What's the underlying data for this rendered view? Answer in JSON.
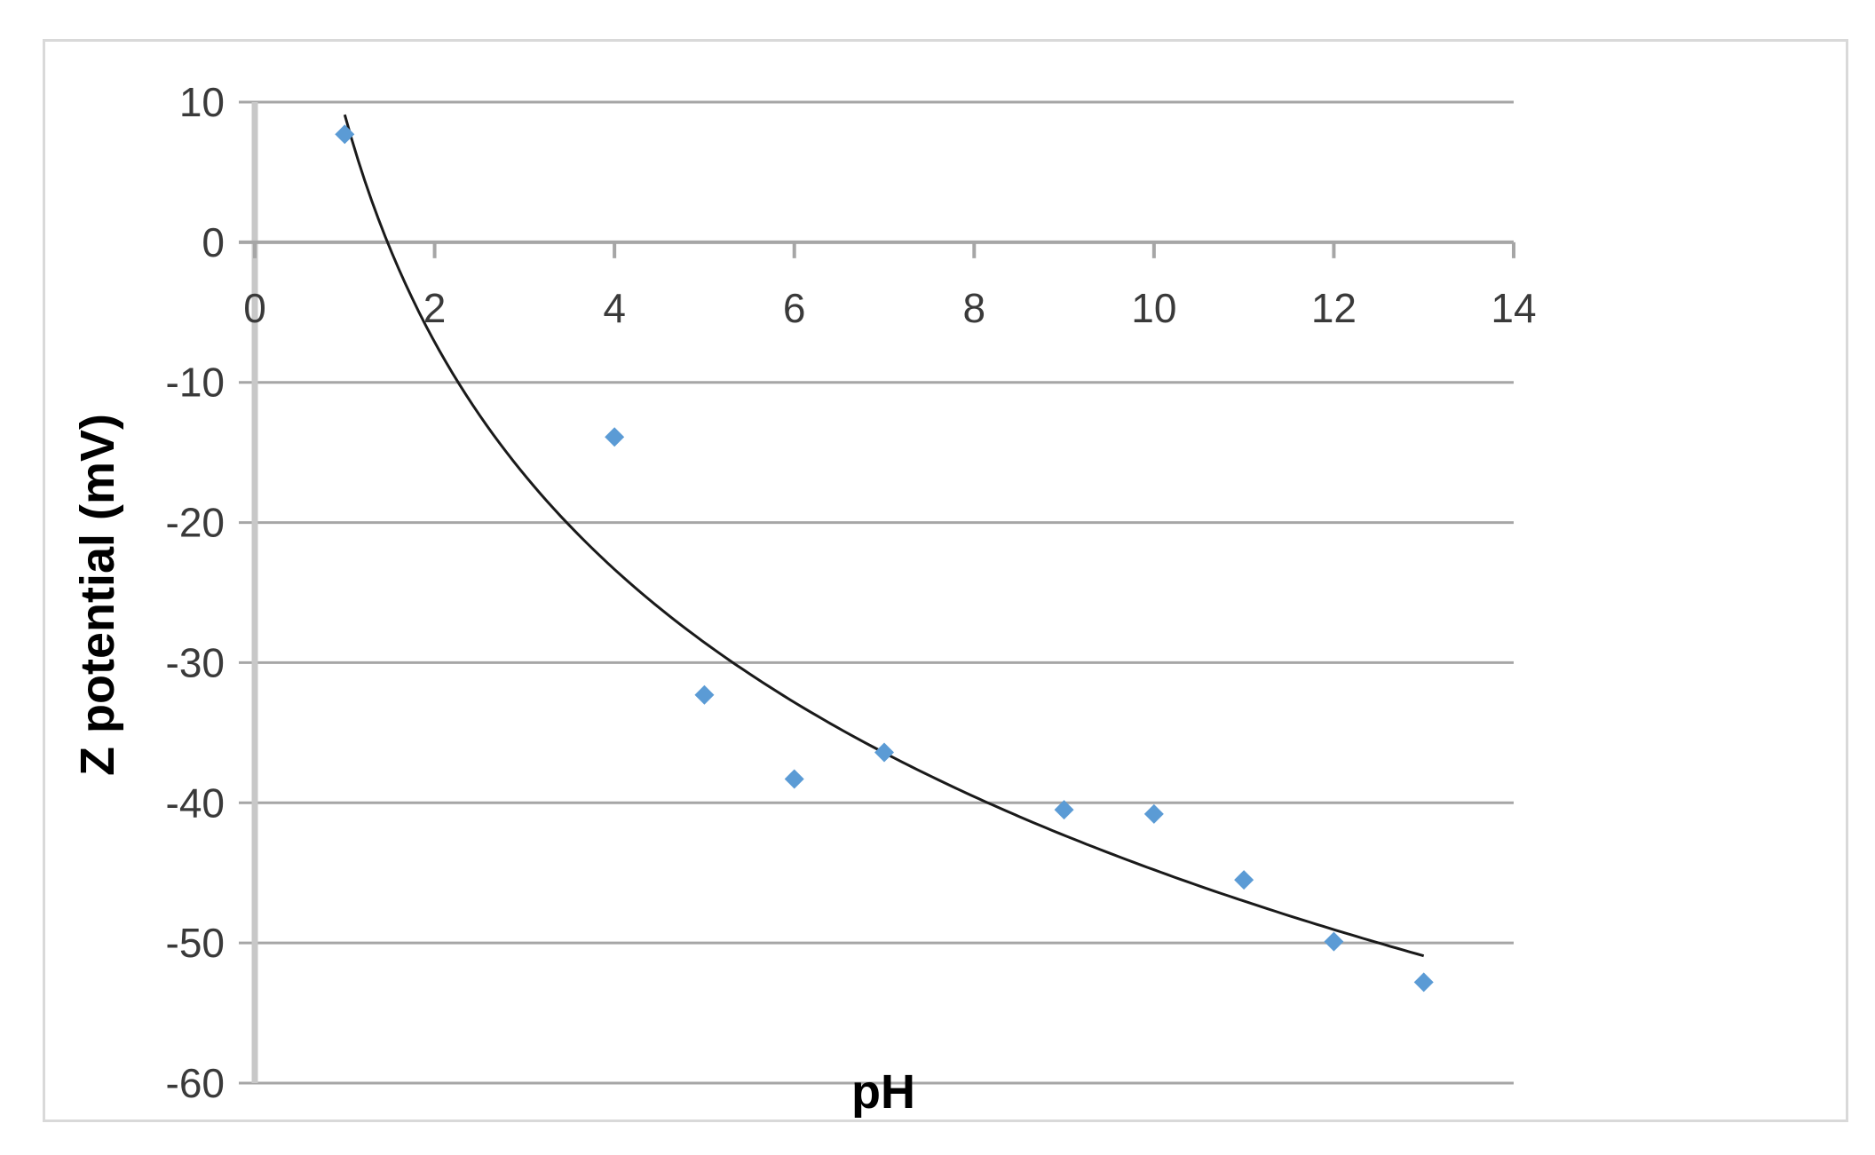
{
  "chart_data": {
    "type": "scatter",
    "title": "",
    "xlabel": "pH",
    "ylabel": "Z potential (mV)",
    "xlim": [
      0,
      14
    ],
    "ylim": [
      -60,
      10
    ],
    "x_ticks": [
      "0",
      "2",
      "4",
      "6",
      "8",
      "10",
      "12",
      "14"
    ],
    "y_ticks": [
      "10",
      "0",
      "-10",
      "-20",
      "-30",
      "-40",
      "-50",
      "-60"
    ],
    "grid": "horizontal",
    "legend": "none",
    "series": [
      {
        "marker": "diamond",
        "color": "#5b9bd5",
        "points": [
          {
            "x": 1,
            "y": 7.7
          },
          {
            "x": 4,
            "y": -13.9
          },
          {
            "x": 5,
            "y": -32.3
          },
          {
            "x": 6,
            "y": -38.3
          },
          {
            "x": 7,
            "y": -36.4
          },
          {
            "x": 9,
            "y": -40.5
          },
          {
            "x": 10,
            "y": -40.8
          },
          {
            "x": 11,
            "y": -45.5
          },
          {
            "x": 12,
            "y": -49.9
          },
          {
            "x": 13,
            "y": -52.8
          }
        ]
      }
    ],
    "trendline": {
      "type": "logarithmic",
      "color": "#1a1a1a",
      "a": 9.1,
      "b": -23.4,
      "x_range": [
        1,
        13
      ]
    }
  }
}
